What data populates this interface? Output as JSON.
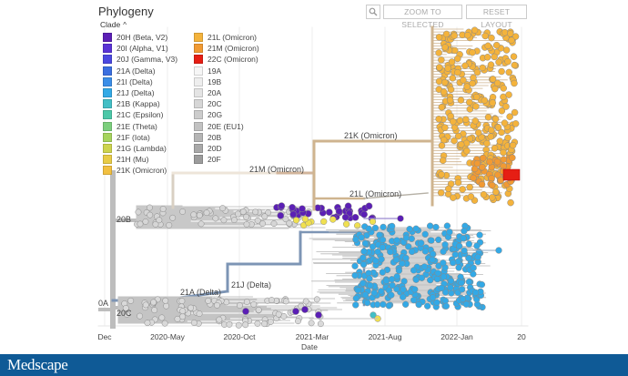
{
  "panel": {
    "title": "Phylogeny"
  },
  "toolbar": {
    "zoom_label": "ZOOM TO SELECTED",
    "reset_label": "RESET LAYOUT",
    "search_icon": "magnifier-icon"
  },
  "legend": {
    "title": "Clade",
    "toggle_icon": "chevron-up-icon",
    "items": [
      {
        "label": "20H (Beta, V2)",
        "color": "#5b1fb5"
      },
      {
        "label": "20I (Alpha, V1)",
        "color": "#5a33d6"
      },
      {
        "label": "20J (Gamma, V3)",
        "color": "#4b48e0"
      },
      {
        "label": "21A (Delta)",
        "color": "#3b6fe0"
      },
      {
        "label": "21I (Delta)",
        "color": "#3b8ee8"
      },
      {
        "label": "21J (Delta)",
        "color": "#33a9e6"
      },
      {
        "label": "21B (Kappa)",
        "color": "#43bfc6"
      },
      {
        "label": "21C (Epsilon)",
        "color": "#4cc8a8"
      },
      {
        "label": "21E (Theta)",
        "color": "#7ccf7d"
      },
      {
        "label": "21F (Iota)",
        "color": "#a6d45d"
      },
      {
        "label": "21G (Lambda)",
        "color": "#cdd44e"
      },
      {
        "label": "21H (Mu)",
        "color": "#e8cc46"
      },
      {
        "label": "21K (Omicron)",
        "color": "#f2c040"
      },
      {
        "label": "21L (Omicron)",
        "color": "#f4b33c"
      },
      {
        "label": "21M (Omicron)",
        "color": "#f19a33"
      },
      {
        "label": "22C (Omicron)",
        "color": "#e61e14"
      },
      {
        "label": "19A",
        "color": "#f6f6f6"
      },
      {
        "label": "19B",
        "color": "#eeeeee"
      },
      {
        "label": "20A",
        "color": "#e4e4e4"
      },
      {
        "label": "20C",
        "color": "#d6d6d6"
      },
      {
        "label": "20G",
        "color": "#cccccc"
      },
      {
        "label": "20E (EU1)",
        "color": "#c2c2c2"
      },
      {
        "label": "20B",
        "color": "#b5b5b5"
      },
      {
        "label": "20D",
        "color": "#a9a9a9"
      },
      {
        "label": "20F",
        "color": "#9c9c9c"
      }
    ]
  },
  "axis": {
    "label": "Date",
    "ticks": [
      "Dec",
      "2020-May",
      "2020-Oct",
      "2021-Mar",
      "2021-Aug",
      "2022-Jan",
      "20"
    ]
  },
  "branch_labels": {
    "k21": "21K (Omicron)",
    "m21": "21M (Omicron)",
    "l21": "21L (Omicron)",
    "b20": "20B",
    "a21": "21A (Delta)",
    "j21": "21J (Delta)",
    "c20": "20C",
    "a19": "0A"
  },
  "colors": {
    "omicron": "#f4b33c",
    "omicron_branch": "#cfb48f",
    "delta": "#33a9e6",
    "delta_branch": "#7d95b5",
    "grey_branch": "#bdbdbd",
    "selected": "#e61e14",
    "purple": "#5b1fb5"
  },
  "footer": {
    "brand": "Medscape"
  }
}
